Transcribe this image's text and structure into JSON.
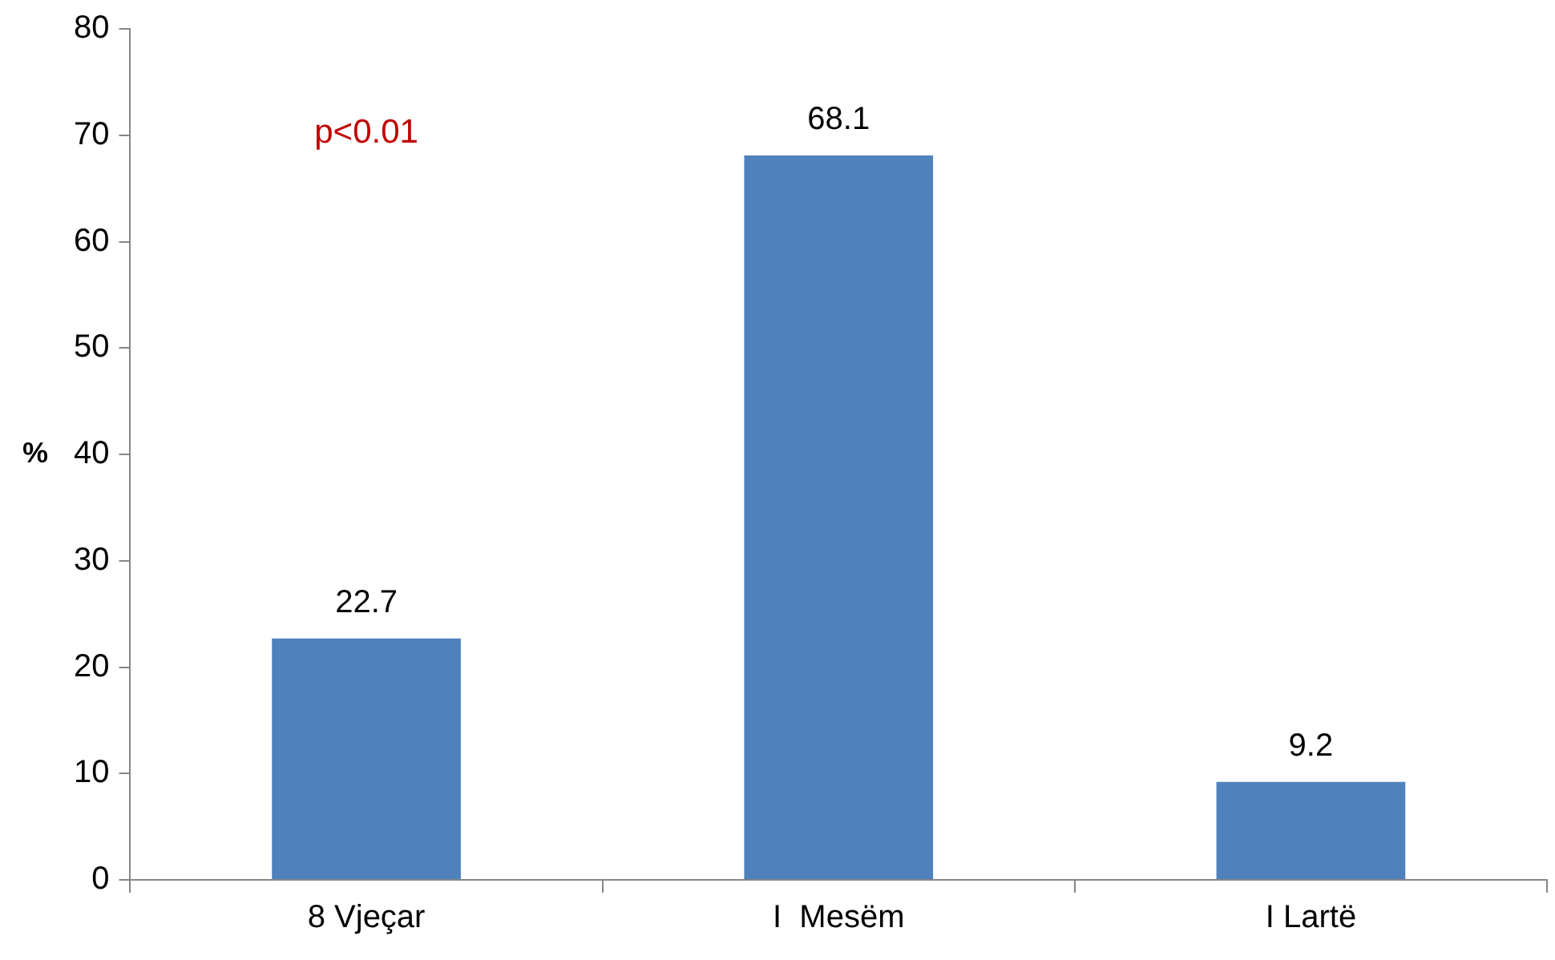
{
  "chart_data": {
    "type": "bar",
    "categories": [
      "8 Vjeçar",
      "I  Mesëm",
      "I Lartë"
    ],
    "values": [
      22.7,
      68.1,
      9.2
    ],
    "color": "#4f81bd",
    "ylabel": "%",
    "ylim": [
      0,
      80
    ],
    "yticks": [
      0,
      10,
      20,
      30,
      40,
      50,
      60,
      70,
      80
    ],
    "data_labels": true,
    "grid": false,
    "legend": false,
    "annotations": [
      "p<0.01"
    ]
  }
}
